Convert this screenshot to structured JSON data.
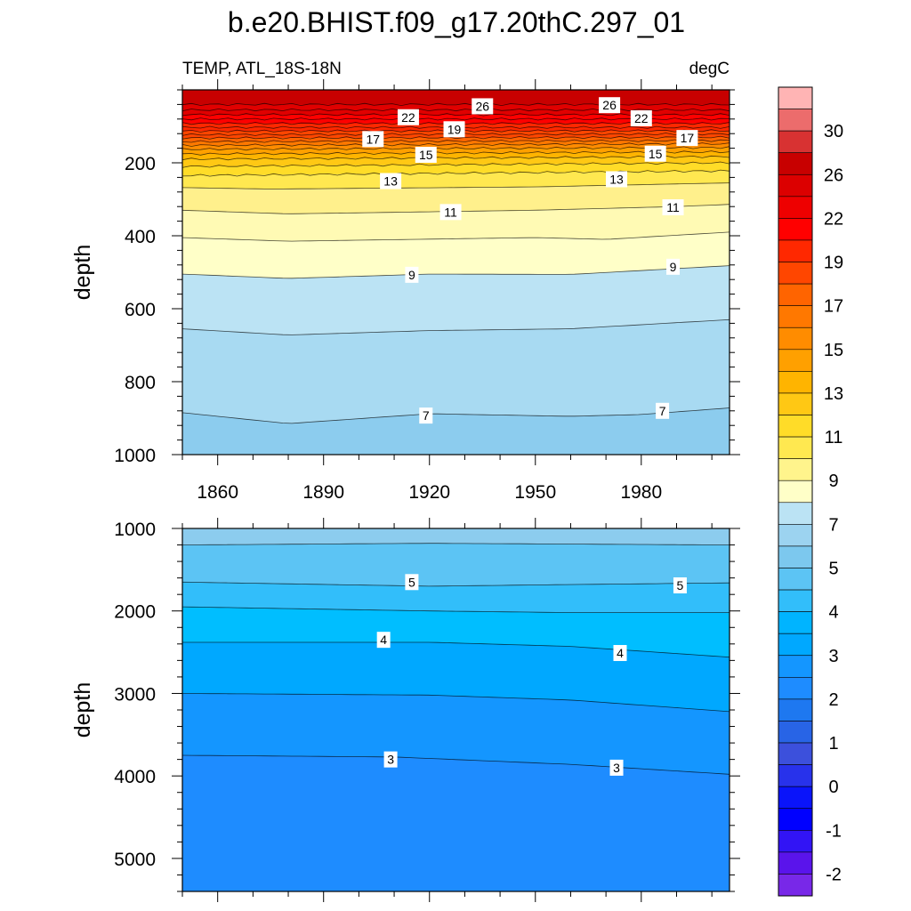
{
  "title": "b.e20.BHIST.f09_g17.20thC.297_01",
  "left_string": "TEMP, ATL_18S-18N",
  "right_string": "degC",
  "chart_data": {
    "type": "heatmap",
    "x": {
      "range": [
        1850,
        2005
      ],
      "ticks": [
        1860,
        1890,
        1920,
        1950,
        1980
      ],
      "tick_labels": [
        "1860",
        "1890",
        "1920",
        "1950",
        "1980"
      ]
    },
    "panels": [
      {
        "name": "upper",
        "ylabel": "depth",
        "ylim": [
          0,
          1000
        ],
        "y_ticks": [
          200,
          400,
          600,
          800,
          1000
        ],
        "y_tick_labels": [
          "200",
          "400",
          "600",
          "800",
          "1000"
        ],
        "y_reversed": true,
        "contours": [
          {
            "level": 28,
            "depth_at": [
              [
                1850,
                40
              ],
              [
                2005,
                40
              ]
            ]
          },
          {
            "level": 27,
            "depth_at": [
              [
                1850,
                55
              ],
              [
                2005,
                55
              ]
            ]
          },
          {
            "level": 26,
            "depth_at": [
              [
                1850,
                68
              ],
              [
                2005,
                68
              ]
            ]
          },
          {
            "level": 25,
            "depth_at": [
              [
                1850,
                80
              ],
              [
                2005,
                80
              ]
            ]
          },
          {
            "level": 24,
            "depth_at": [
              [
                1850,
                92
              ],
              [
                2005,
                92
              ]
            ]
          },
          {
            "level": 23,
            "depth_at": [
              [
                1850,
                103
              ],
              [
                2005,
                103
              ]
            ]
          },
          {
            "level": 22,
            "depth_at": [
              [
                1850,
                113
              ],
              [
                2005,
                112
              ]
            ]
          },
          {
            "level": 21,
            "depth_at": [
              [
                1850,
                123
              ],
              [
                2005,
                121
              ]
            ]
          },
          {
            "level": 20,
            "depth_at": [
              [
                1850,
                132
              ],
              [
                2005,
                130
              ]
            ]
          },
          {
            "level": 19,
            "depth_at": [
              [
                1850,
                142
              ],
              [
                2005,
                139
              ]
            ]
          },
          {
            "level": 18,
            "depth_at": [
              [
                1850,
                152
              ],
              [
                2005,
                148
              ]
            ]
          },
          {
            "level": 17,
            "depth_at": [
              [
                1850,
                163
              ],
              [
                2005,
                158
              ]
            ]
          },
          {
            "level": 16,
            "depth_at": [
              [
                1850,
                176
              ],
              [
                2005,
                170
              ]
            ]
          },
          {
            "level": 15,
            "depth_at": [
              [
                1850,
                190
              ],
              [
                2005,
                183
              ]
            ]
          },
          {
            "level": 14,
            "depth_at": [
              [
                1850,
                210
              ],
              [
                2005,
                200
              ]
            ]
          },
          {
            "level": 13,
            "depth_at": [
              [
                1850,
                235
              ],
              [
                2005,
                222
              ]
            ]
          },
          {
            "level": 12,
            "depth_at": [
              [
                1850,
                268
              ],
              [
                1875,
                272
              ],
              [
                1950,
                266
              ],
              [
                2005,
                255
              ]
            ]
          },
          {
            "level": 11,
            "depth_at": [
              [
                1850,
                330
              ],
              [
                1880,
                340
              ],
              [
                1950,
                330
              ],
              [
                1990,
                320
              ],
              [
                2005,
                314
              ]
            ]
          },
          {
            "level": 10,
            "depth_at": [
              [
                1850,
                405
              ],
              [
                1880,
                415
              ],
              [
                1950,
                405
              ],
              [
                1970,
                410
              ],
              [
                2005,
                390
              ]
            ]
          },
          {
            "level": 9,
            "depth_at": [
              [
                1850,
                505
              ],
              [
                1880,
                517
              ],
              [
                1920,
                505
              ],
              [
                1960,
                506
              ],
              [
                2005,
                482
              ]
            ]
          },
          {
            "level": 8,
            "depth_at": [
              [
                1850,
                655
              ],
              [
                1880,
                672
              ],
              [
                1920,
                660
              ],
              [
                1960,
                655
              ],
              [
                2005,
                630
              ]
            ]
          },
          {
            "level": 7,
            "depth_at": [
              [
                1850,
                885
              ],
              [
                1880,
                915
              ],
              [
                1920,
                888
              ],
              [
                1960,
                895
              ],
              [
                1980,
                890
              ],
              [
                2005,
                872
              ]
            ]
          }
        ],
        "contour_labels": [
          {
            "text": "26",
            "x": 1935,
            "depth": 45
          },
          {
            "text": "26",
            "x": 1971,
            "depth": 42
          },
          {
            "text": "22",
            "x": 1914,
            "depth": 75
          },
          {
            "text": "22",
            "x": 1980,
            "depth": 78
          },
          {
            "text": "19",
            "x": 1927,
            "depth": 108
          },
          {
            "text": "17",
            "x": 1904,
            "depth": 135
          },
          {
            "text": "17",
            "x": 1993,
            "depth": 132
          },
          {
            "text": "15",
            "x": 1919,
            "depth": 178
          },
          {
            "text": "15",
            "x": 1984,
            "depth": 175
          },
          {
            "text": "13",
            "x": 1909,
            "depth": 250
          },
          {
            "text": "13",
            "x": 1973,
            "depth": 245
          },
          {
            "text": "11",
            "x": 1926,
            "depth": 335
          },
          {
            "text": "11",
            "x": 1989,
            "depth": 322
          },
          {
            "text": "9",
            "x": 1915,
            "depth": 507
          },
          {
            "text": "9",
            "x": 1989,
            "depth": 485
          },
          {
            "text": "7",
            "x": 1919,
            "depth": 893
          },
          {
            "text": "7",
            "x": 1986,
            "depth": 880
          }
        ]
      },
      {
        "name": "lower",
        "ylabel": "depth",
        "ylim": [
          1000,
          5400
        ],
        "y_ticks": [
          1000,
          2000,
          3000,
          4000,
          5000
        ],
        "y_tick_labels": [
          "1000",
          "2000",
          "3000",
          "4000",
          "5000"
        ],
        "y_reversed": true,
        "contours": [
          {
            "level": 6,
            "depth_at": [
              [
                1850,
                1200
              ],
              [
                1920,
                1180
              ],
              [
                2005,
                1200
              ]
            ]
          },
          {
            "level": 5,
            "depth_at": [
              [
                1850,
                1650
              ],
              [
                1920,
                1700
              ],
              [
                1960,
                1680
              ],
              [
                2005,
                1660
              ]
            ]
          },
          {
            "level": 4.5,
            "depth_at": [
              [
                1850,
                1950
              ],
              [
                1920,
                2000
              ],
              [
                1960,
                2020
              ],
              [
                2005,
                2020
              ]
            ]
          },
          {
            "level": 4,
            "depth_at": [
              [
                1850,
                2380
              ],
              [
                1920,
                2380
              ],
              [
                1960,
                2430
              ],
              [
                2005,
                2560
              ]
            ]
          },
          {
            "level": 3.5,
            "depth_at": [
              [
                1850,
                3000
              ],
              [
                1920,
                3020
              ],
              [
                1960,
                3080
              ],
              [
                2005,
                3220
              ]
            ]
          },
          {
            "level": 3,
            "depth_at": [
              [
                1850,
                3750
              ],
              [
                1910,
                3770
              ],
              [
                1960,
                3860
              ],
              [
                2005,
                3980
              ]
            ]
          }
        ],
        "contour_labels": [
          {
            "text": "5",
            "x": 1915,
            "depth": 1650
          },
          {
            "text": "5",
            "x": 1991,
            "depth": 1690
          },
          {
            "text": "4",
            "x": 1907,
            "depth": 2350
          },
          {
            "text": "4",
            "x": 1974,
            "depth": 2510
          },
          {
            "text": "3",
            "x": 1909,
            "depth": 3800
          },
          {
            "text": "3",
            "x": 1973,
            "depth": 3900
          }
        ]
      }
    ],
    "colorbar": {
      "tick_labels": [
        "30",
        "26",
        "22",
        "19",
        "17",
        "15",
        "13",
        "11",
        "9",
        "7",
        "5",
        "4",
        "3",
        "2",
        "1",
        "0",
        "-1",
        "-2"
      ],
      "colors_top_to_bottom": [
        "#FFB4B4",
        "#EC6C6C",
        "#D83232",
        "#C80000",
        "#DC0000",
        "#EE0000",
        "#FF0000",
        "#FF2800",
        "#FF4600",
        "#FF6400",
        "#FF7800",
        "#FF8C00",
        "#FFA000",
        "#FFB400",
        "#FFC814",
        "#FFDC28",
        "#FFE850",
        "#FFF48C",
        "#FFFFC8",
        "#BBE3F4",
        "#9CD3F0",
        "#7CC8EE",
        "#5CC4F4",
        "#32BEFA",
        "#00B4FF",
        "#00A8FF",
        "#1496FF",
        "#1E8CFF",
        "#1E78F0",
        "#2864E6",
        "#3C50DC",
        "#2832EB",
        "#0A14FA",
        "#0000FF",
        "#3214F5",
        "#5A14EB",
        "#7828E8"
      ]
    }
  }
}
